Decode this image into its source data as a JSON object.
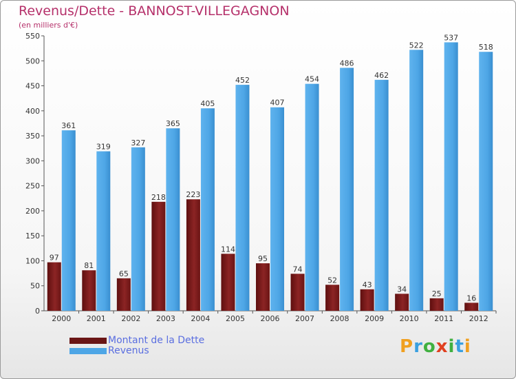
{
  "title": "Revenus/Dette - BANNOST-VILLEGAGNON",
  "subtitle": "(en milliers d'€)",
  "legend": {
    "dette_label": "Montant de la Dette",
    "revenus_label": "Revenus"
  },
  "logo": {
    "letters": [
      "P",
      "r",
      "o",
      "x",
      "i",
      "t",
      "i"
    ]
  },
  "colors": {
    "dette": "#7a1a1a",
    "revenus": "#4ea6e6",
    "title": "#b5306a",
    "legend_text": "#5a6ee0",
    "logo": [
      "#f0a020",
      "#3aa0e0",
      "#40b040",
      "#e04020",
      "#40b040",
      "#3aa0e0",
      "#f0a020"
    ]
  },
  "chart_data": {
    "type": "bar",
    "categories": [
      "2000",
      "2001",
      "2002",
      "2003",
      "2004",
      "2005",
      "2006",
      "2007",
      "2008",
      "2009",
      "2010",
      "2011",
      "2012"
    ],
    "series": [
      {
        "name": "Montant de la Dette",
        "values": [
          97,
          81,
          65,
          218,
          223,
          114,
          95,
          74,
          52,
          43,
          34,
          25,
          16
        ]
      },
      {
        "name": "Revenus",
        "values": [
          361,
          319,
          327,
          365,
          405,
          452,
          407,
          454,
          486,
          462,
          522,
          537,
          518
        ]
      }
    ],
    "yticks": [
      0,
      50,
      100,
      150,
      200,
      250,
      300,
      350,
      400,
      450,
      500,
      550
    ],
    "ylim": [
      0,
      550
    ],
    "grid": false,
    "legend_position": "bottom-left"
  }
}
